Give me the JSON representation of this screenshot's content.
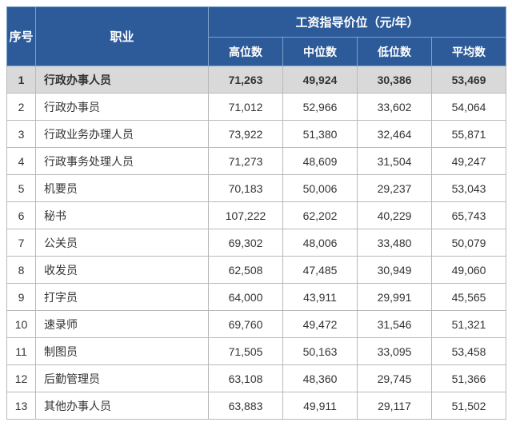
{
  "colors": {
    "header_bg": "#2d5b9a",
    "header_border": "#7ca0c9",
    "body_border": "#b9b9b9",
    "highlight_bg": "#d9d9d9",
    "row_bg": "#ffffff",
    "text": "#333333"
  },
  "header": {
    "seq": "序号",
    "occupation": "职业",
    "group": "工资指导价位（元/年）",
    "sub": {
      "high": "高位数",
      "median": "中位数",
      "low": "低位数",
      "avg": "平均数"
    }
  },
  "rows": [
    {
      "idx": "1",
      "name": "行政办事人员",
      "high": "71,263",
      "median": "49,924",
      "low": "30,386",
      "avg": "53,469",
      "highlight": true
    },
    {
      "idx": "2",
      "name": "行政办事员",
      "high": "71,012",
      "median": "52,966",
      "low": "33,602",
      "avg": "54,064",
      "highlight": false
    },
    {
      "idx": "3",
      "name": "行政业务办理人员",
      "high": "73,922",
      "median": "51,380",
      "low": "32,464",
      "avg": "55,871",
      "highlight": false
    },
    {
      "idx": "4",
      "name": "行政事务处理人员",
      "high": "71,273",
      "median": "48,609",
      "low": "31,504",
      "avg": "49,247",
      "highlight": false
    },
    {
      "idx": "5",
      "name": "机要员",
      "high": "70,183",
      "median": "50,006",
      "low": "29,237",
      "avg": "53,043",
      "highlight": false
    },
    {
      "idx": "6",
      "name": "秘书",
      "high": "107,222",
      "median": "62,202",
      "low": "40,229",
      "avg": "65,743",
      "highlight": false
    },
    {
      "idx": "7",
      "name": "公关员",
      "high": "69,302",
      "median": "48,006",
      "low": "33,480",
      "avg": "50,079",
      "highlight": false
    },
    {
      "idx": "8",
      "name": "收发员",
      "high": "62,508",
      "median": "47,485",
      "low": "30,949",
      "avg": "49,060",
      "highlight": false
    },
    {
      "idx": "9",
      "name": "打字员",
      "high": "64,000",
      "median": "43,911",
      "low": "29,991",
      "avg": "45,565",
      "highlight": false
    },
    {
      "idx": "10",
      "name": "速录师",
      "high": "69,760",
      "median": "49,472",
      "low": "31,546",
      "avg": "51,321",
      "highlight": false
    },
    {
      "idx": "11",
      "name": "制图员",
      "high": "71,505",
      "median": "50,163",
      "low": "33,095",
      "avg": "53,458",
      "highlight": false
    },
    {
      "idx": "12",
      "name": "后勤管理员",
      "high": "63,108",
      "median": "48,360",
      "low": "29,745",
      "avg": "51,366",
      "highlight": false
    },
    {
      "idx": "13",
      "name": "其他办事人员",
      "high": "63,883",
      "median": "49,911",
      "low": "29,117",
      "avg": "51,502",
      "highlight": false
    }
  ]
}
